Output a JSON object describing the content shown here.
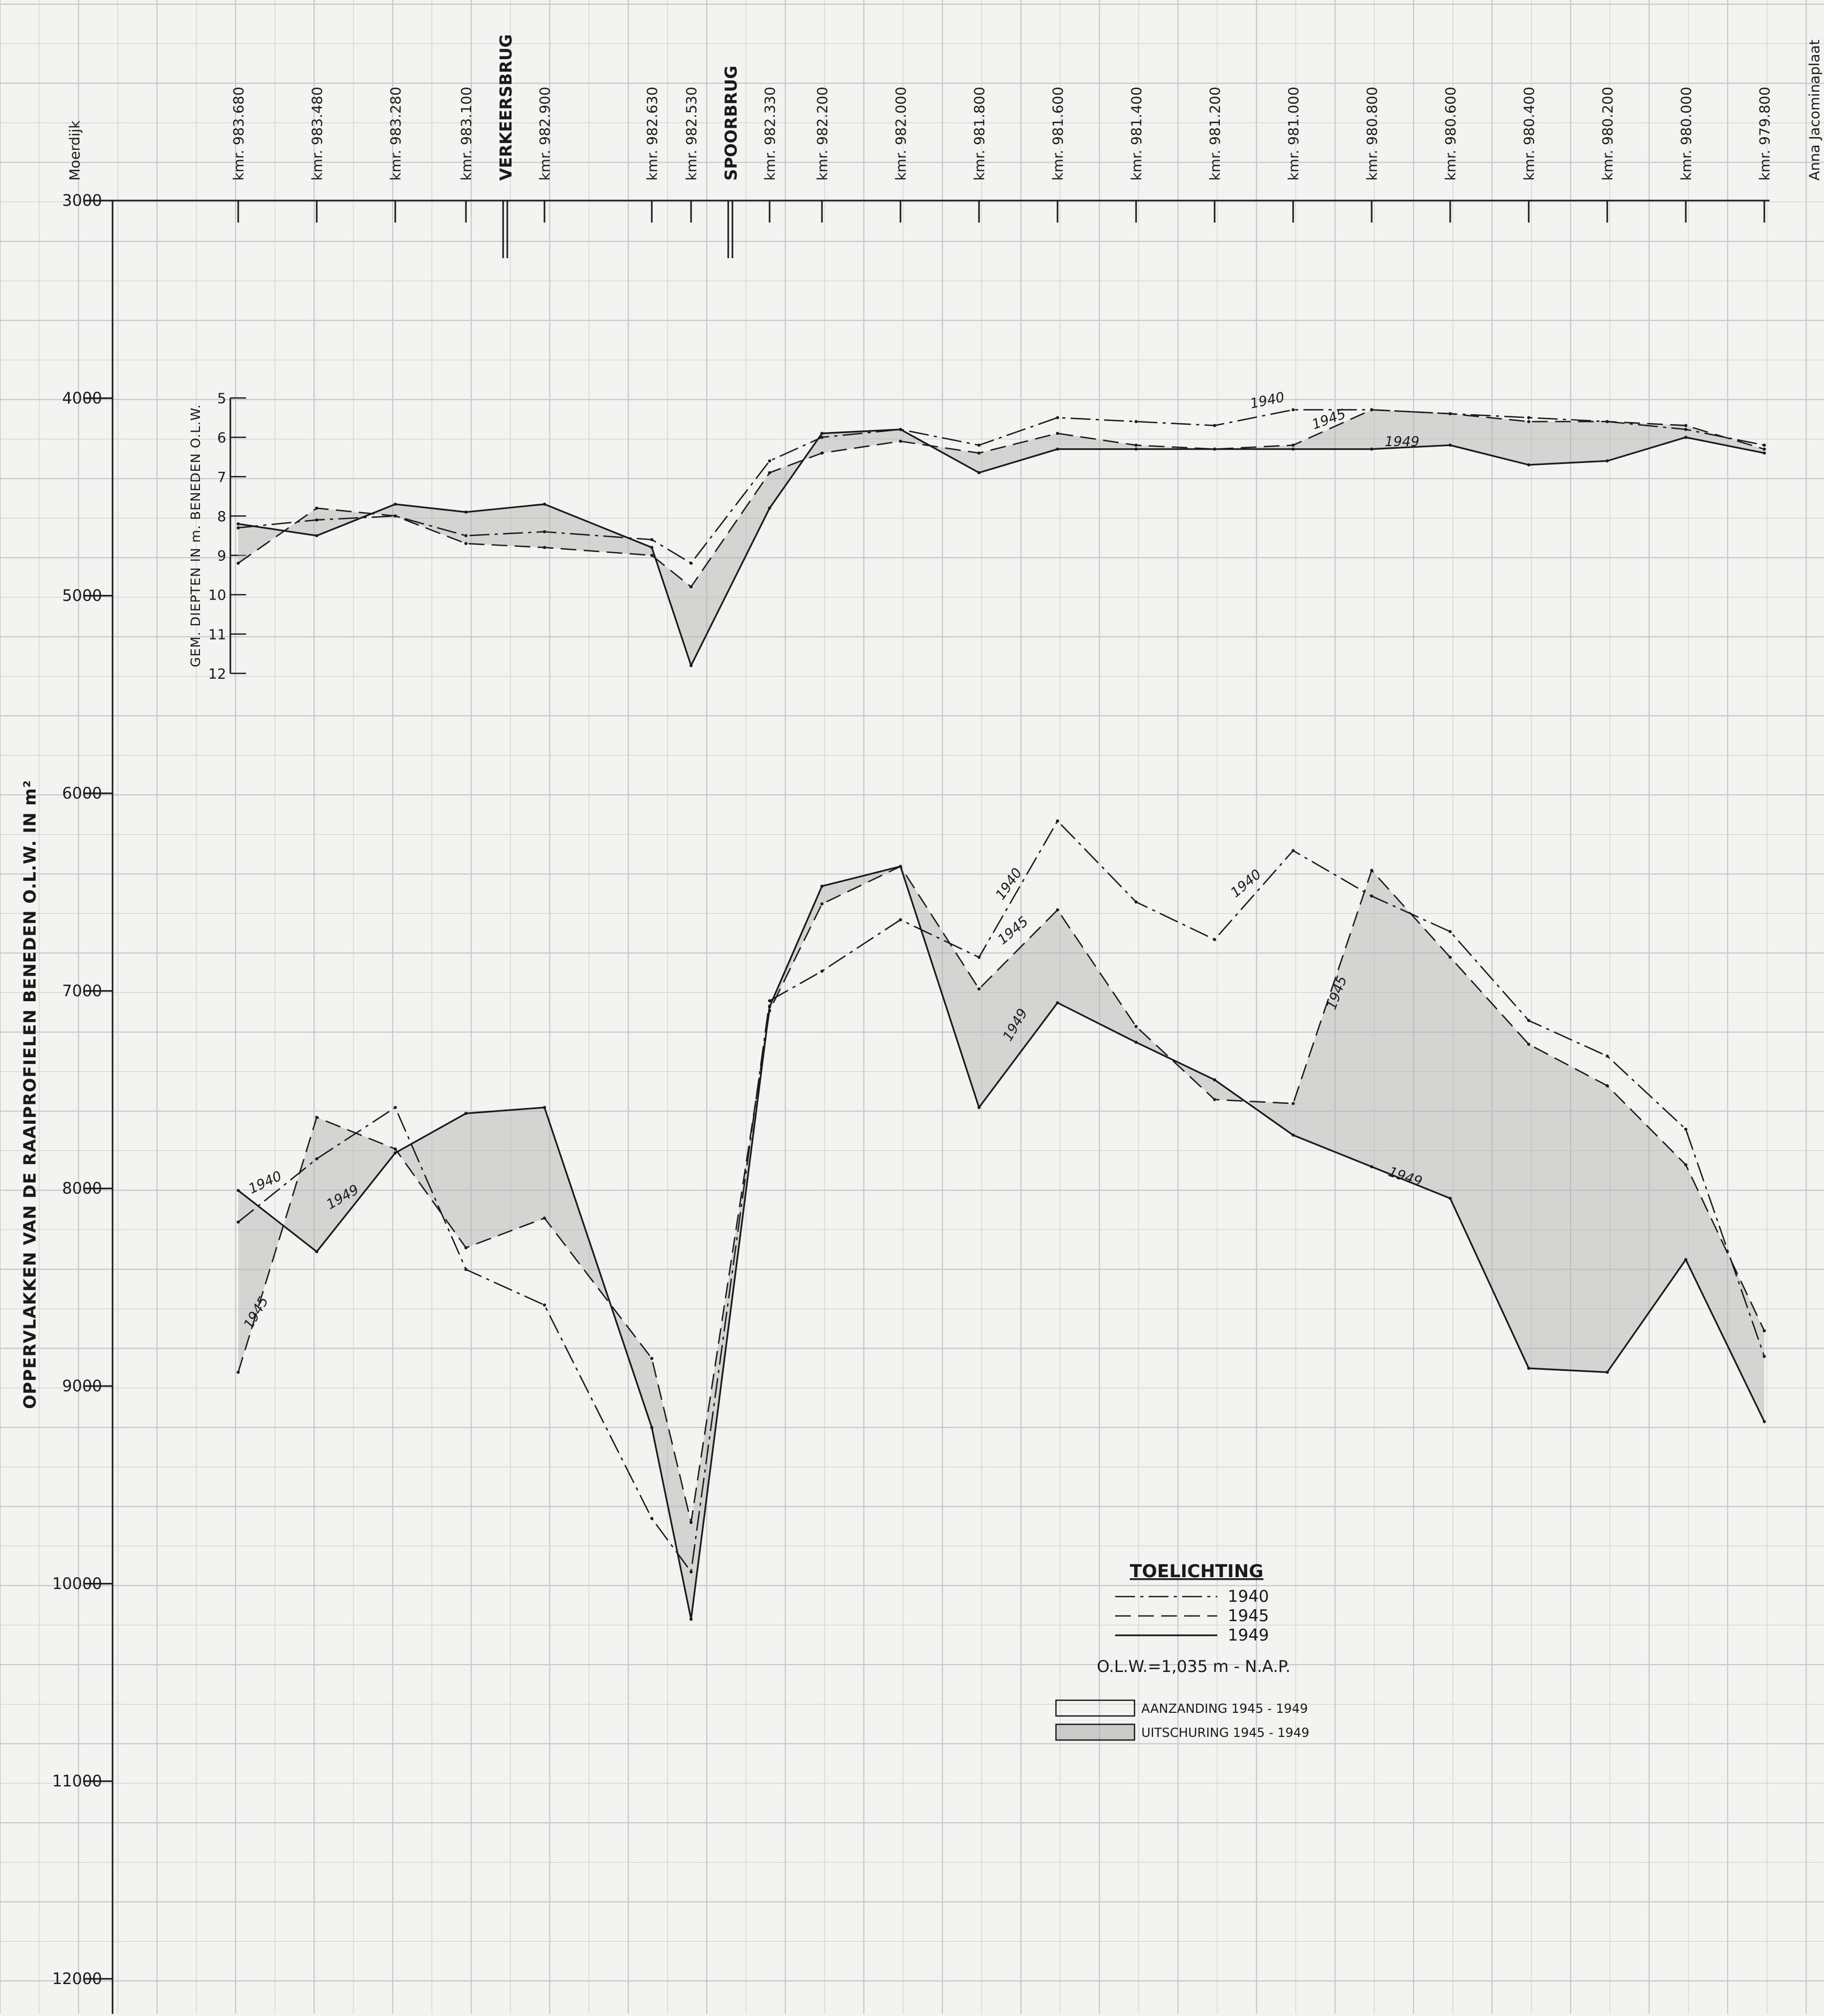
{
  "colors": {
    "ink": "#1a1a1a",
    "grid": "#c9c9c9",
    "paper": "#f3f3f1",
    "shade": "#b0b0b0"
  },
  "chart_data": {
    "type": "line",
    "x_label_left": "Moerdijk",
    "x_label_right": "Anna Jacominaplaat",
    "locations": [
      "kmr. 983.680",
      "kmr. 983.480",
      "kmr. 983.280",
      "kmr. 983.100",
      "kmr. 982.900",
      "kmr. 982.630",
      "kmr. 982.530",
      "kmr. 982.330",
      "kmr. 982.200",
      "kmr. 982.000",
      "kmr. 981.800",
      "kmr. 981.600",
      "kmr. 981.400",
      "kmr. 981.200",
      "kmr. 981.000",
      "kmr. 980.800",
      "kmr. 980.600",
      "kmr. 980.400",
      "kmr. 980.200",
      "kmr. 980.000",
      "kmr. 979.800"
    ],
    "bridges": [
      {
        "label": "VERKEERSBRUG",
        "between": [
          "kmr. 983.100",
          "kmr. 982.900"
        ]
      },
      {
        "label": "SPOORBRUG",
        "between": [
          "kmr. 982.530",
          "kmr. 982.330"
        ]
      }
    ],
    "area_axis": {
      "label": "OPPERVLAKKEN VAN DE RAAIPROFIELEN BENEDEN O.L.W. IN m²",
      "ylim": [
        3000,
        12000
      ],
      "ticks": [
        "3000",
        "4000",
        "5000",
        "6000",
        "7000",
        "8000",
        "9000",
        "10000",
        "11000",
        "12000"
      ],
      "inverted": true
    },
    "depth_axis": {
      "label": "GEM. DIEPTEN IN m. BENEDEN O.L.W.",
      "ylim": [
        5,
        12
      ],
      "ticks": [
        "5",
        "6",
        "7",
        "8",
        "9",
        "10",
        "11",
        "12"
      ],
      "inverted": true
    },
    "area_series": [
      {
        "name": "1940",
        "values": [
          8170,
          7850,
          7590,
          8410,
          8590,
          9670,
          9940,
          7050,
          6900,
          6640,
          6830,
          6140,
          6550,
          6740,
          6290,
          6520,
          6700,
          7150,
          7330,
          7700,
          8850
        ]
      },
      {
        "name": "1945",
        "values": [
          8930,
          7640,
          7800,
          8300,
          8150,
          8860,
          9690,
          7100,
          6560,
          6370,
          6990,
          6590,
          7180,
          7550,
          7570,
          6390,
          6830,
          7270,
          7480,
          7880,
          8720
        ]
      },
      {
        "name": "1949",
        "values": [
          8010,
          8320,
          7820,
          7620,
          7590,
          9210,
          10180,
          7080,
          6470,
          6370,
          7590,
          7060,
          7260,
          7450,
          7730,
          7890,
          8050,
          8910,
          8930,
          8360,
          9180
        ]
      }
    ],
    "depth_series": [
      {
        "name": "1940",
        "values": [
          8.3,
          8.1,
          8.0,
          8.5,
          8.4,
          8.6,
          9.2,
          6.6,
          6.0,
          5.8,
          6.2,
          5.5,
          5.6,
          5.7,
          5.3,
          5.3,
          5.4,
          5.5,
          5.6,
          5.8,
          6.2
        ]
      },
      {
        "name": "1945",
        "values": [
          9.2,
          7.8,
          8.0,
          8.7,
          8.8,
          9.0,
          9.8,
          6.9,
          6.4,
          6.1,
          6.4,
          5.9,
          6.2,
          6.3,
          6.2,
          5.3,
          5.4,
          5.6,
          5.6,
          5.7,
          6.3
        ]
      },
      {
        "name": "1949",
        "values": [
          8.2,
          8.5,
          7.7,
          7.9,
          7.7,
          8.8,
          11.8,
          7.8,
          5.9,
          5.8,
          6.9,
          6.3,
          6.3,
          6.3,
          6.3,
          6.3,
          6.2,
          6.7,
          6.6,
          6.0,
          6.4
        ]
      }
    ],
    "legend": {
      "title": "TOELICHTING",
      "entries": [
        {
          "label": "1940"
        },
        {
          "label": "1945"
        },
        {
          "label": "1949"
        }
      ],
      "note": "O.L.W.=1,035 m - N.A.P.",
      "fill_entries": [
        {
          "label": "AANZANDING 1945 - 1949"
        },
        {
          "label": "UITSCHURING 1945 - 1949"
        }
      ]
    }
  }
}
